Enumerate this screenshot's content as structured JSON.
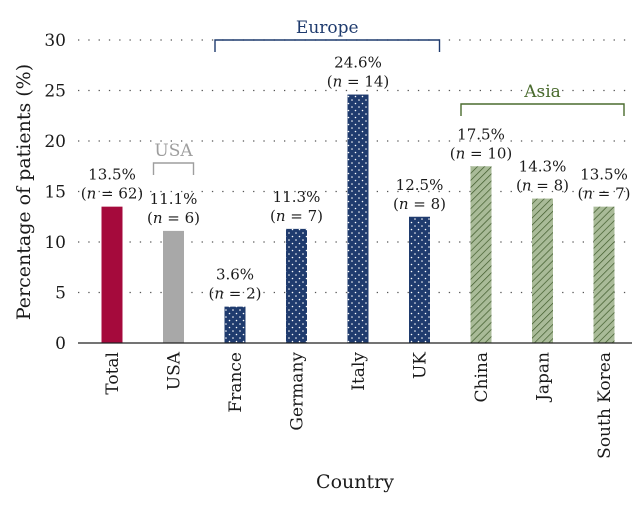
{
  "chart_data": {
    "type": "bar",
    "title": "",
    "xlabel": "Country",
    "ylabel": "Percentage of patients (%)",
    "ylim": [
      0,
      30
    ],
    "yticks": [
      0,
      5,
      10,
      15,
      20,
      25,
      30
    ],
    "grid": "dotted horizontal",
    "categories": [
      "Total",
      "USA",
      "France",
      "Germany",
      "Italy",
      "UK",
      "China",
      "Japan",
      "South Korea"
    ],
    "values": [
      13.5,
      11.1,
      3.6,
      11.3,
      24.6,
      12.5,
      17.5,
      14.3,
      13.5
    ],
    "n_values": [
      62,
      6,
      2,
      7,
      14,
      8,
      10,
      8,
      7
    ],
    "pct_labels": [
      "13.5%",
      "11.1%",
      "3.6%",
      "11.3%",
      "24.6%",
      "12.5%",
      "17.5%",
      "14.3%",
      "13.5%"
    ],
    "n_labels": [
      "(n = 62)",
      "(n = 6)",
      "(n = 2)",
      "(n = 7)",
      "(n = 14)",
      "(n = 8)",
      "(n = 10)",
      "(n = 8)",
      "(n = 7)"
    ],
    "groups": [
      {
        "name": "USA",
        "from": 1,
        "to": 1,
        "color": "#9e9e9e"
      },
      {
        "name": "Europe",
        "from": 2,
        "to": 5,
        "color": "#1f3b6e"
      },
      {
        "name": "Asia",
        "from": 6,
        "to": 8,
        "color": "#4a6b2e"
      }
    ],
    "bar_styles": [
      "total",
      "usa",
      "europe",
      "europe",
      "europe",
      "europe",
      "asia",
      "asia",
      "asia"
    ],
    "colors": {
      "total": "#a50a3c",
      "usa": "#a8a8a8",
      "europe": "#1f3b6e",
      "asia": "#9aae8a"
    }
  }
}
